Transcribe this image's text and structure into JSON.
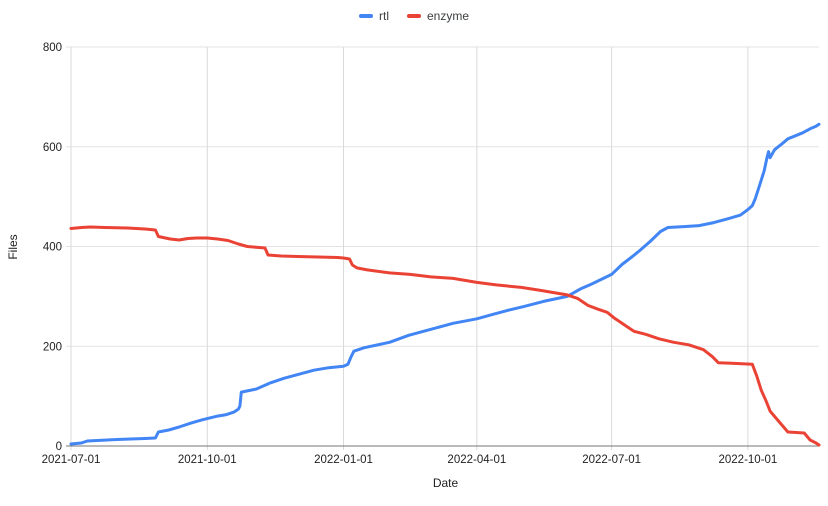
{
  "page": {
    "background": "#ffffff"
  },
  "legend": {
    "items": [
      {
        "label": "rtl",
        "color": "#4285F4"
      },
      {
        "label": "enzyme",
        "color": "#EA4335"
      }
    ]
  },
  "chart_data": {
    "type": "line",
    "title": "",
    "xlabel": "Date",
    "ylabel": "Files",
    "ylim": [
      0,
      800
    ],
    "y_ticks": [
      0,
      200,
      400,
      600,
      800
    ],
    "x_ticks": [
      "2021-07-01",
      "2021-10-01",
      "2022-01-01",
      "2022-04-01",
      "2022-07-01",
      "2022-10-01"
    ],
    "x_start": "2021-07-01",
    "x_end": "2022-11-18",
    "grid": true,
    "legend_position": "top",
    "grid_color": "#e3e3e3",
    "vgrid_color": "#d9d9d9",
    "axis_color": "#757575",
    "text_color": "#1f1f1f",
    "series": [
      {
        "name": "rtl",
        "color": "#4285F4",
        "points": [
          [
            "2021-07-01",
            4
          ],
          [
            "2021-07-08",
            6
          ],
          [
            "2021-07-12",
            10
          ],
          [
            "2021-08-01",
            13
          ],
          [
            "2021-08-20",
            15
          ],
          [
            "2021-08-27",
            16
          ],
          [
            "2021-08-29",
            28
          ],
          [
            "2021-09-05",
            32
          ],
          [
            "2021-09-12",
            38
          ],
          [
            "2021-09-20",
            46
          ],
          [
            "2021-09-27",
            52
          ],
          [
            "2021-10-01",
            55
          ],
          [
            "2021-10-08",
            60
          ],
          [
            "2021-10-14",
            63
          ],
          [
            "2021-10-19",
            68
          ],
          [
            "2021-10-22",
            74
          ],
          [
            "2021-10-23",
            80
          ],
          [
            "2021-10-24",
            108
          ],
          [
            "2021-11-03",
            114
          ],
          [
            "2021-11-12",
            126
          ],
          [
            "2021-11-22",
            136
          ],
          [
            "2021-12-02",
            144
          ],
          [
            "2021-12-12",
            152
          ],
          [
            "2021-12-22",
            157
          ],
          [
            "2022-01-01",
            160
          ],
          [
            "2022-01-04",
            164
          ],
          [
            "2022-01-06",
            178
          ],
          [
            "2022-01-08",
            190
          ],
          [
            "2022-01-15",
            197
          ],
          [
            "2022-02-01",
            208
          ],
          [
            "2022-02-14",
            222
          ],
          [
            "2022-03-01",
            234
          ],
          [
            "2022-03-16",
            246
          ],
          [
            "2022-04-01",
            255
          ],
          [
            "2022-04-12",
            264
          ],
          [
            "2022-04-22",
            272
          ],
          [
            "2022-05-03",
            280
          ],
          [
            "2022-05-16",
            290
          ],
          [
            "2022-06-01",
            300
          ],
          [
            "2022-06-10",
            315
          ],
          [
            "2022-06-17",
            324
          ],
          [
            "2022-06-24",
            334
          ],
          [
            "2022-07-01",
            344
          ],
          [
            "2022-07-08",
            364
          ],
          [
            "2022-07-15",
            380
          ],
          [
            "2022-07-20",
            392
          ],
          [
            "2022-07-27",
            410
          ],
          [
            "2022-08-03",
            430
          ],
          [
            "2022-08-08",
            438
          ],
          [
            "2022-08-20",
            440
          ],
          [
            "2022-08-29",
            442
          ],
          [
            "2022-09-08",
            448
          ],
          [
            "2022-09-18",
            456
          ],
          [
            "2022-09-26",
            463
          ],
          [
            "2022-10-01",
            474
          ],
          [
            "2022-10-04",
            482
          ],
          [
            "2022-10-06",
            496
          ],
          [
            "2022-10-09",
            524
          ],
          [
            "2022-10-12",
            552
          ],
          [
            "2022-10-14",
            580
          ],
          [
            "2022-10-15",
            590
          ],
          [
            "2022-10-16",
            578
          ],
          [
            "2022-10-19",
            594
          ],
          [
            "2022-10-24",
            606
          ],
          [
            "2022-10-28",
            616
          ],
          [
            "2022-11-02",
            622
          ],
          [
            "2022-11-07",
            628
          ],
          [
            "2022-11-12",
            636
          ],
          [
            "2022-11-16",
            641
          ],
          [
            "2022-11-18",
            645
          ]
        ]
      },
      {
        "name": "enzyme",
        "color": "#EA4335",
        "points": [
          [
            "2021-07-01",
            436
          ],
          [
            "2021-07-08",
            438
          ],
          [
            "2021-07-14",
            439
          ],
          [
            "2021-07-24",
            438
          ],
          [
            "2021-08-08",
            437
          ],
          [
            "2021-08-20",
            435
          ],
          [
            "2021-08-27",
            433
          ],
          [
            "2021-08-29",
            420
          ],
          [
            "2021-09-06",
            415
          ],
          [
            "2021-09-12",
            413
          ],
          [
            "2021-09-18",
            416
          ],
          [
            "2021-09-24",
            417
          ],
          [
            "2021-10-01",
            417
          ],
          [
            "2021-10-08",
            415
          ],
          [
            "2021-10-15",
            412
          ],
          [
            "2021-10-22",
            405
          ],
          [
            "2021-10-28",
            400
          ],
          [
            "2021-11-05",
            398
          ],
          [
            "2021-11-09",
            397
          ],
          [
            "2021-11-11",
            383
          ],
          [
            "2021-11-20",
            381
          ],
          [
            "2021-12-01",
            380
          ],
          [
            "2021-12-15",
            379
          ],
          [
            "2021-12-28",
            378
          ],
          [
            "2022-01-01",
            377
          ],
          [
            "2022-01-05",
            375
          ],
          [
            "2022-01-07",
            363
          ],
          [
            "2022-01-10",
            357
          ],
          [
            "2022-01-17",
            353
          ],
          [
            "2022-02-01",
            347
          ],
          [
            "2022-02-15",
            344
          ],
          [
            "2022-03-01",
            339
          ],
          [
            "2022-03-16",
            336
          ],
          [
            "2022-04-01",
            328
          ],
          [
            "2022-04-14",
            323
          ],
          [
            "2022-05-01",
            318
          ],
          [
            "2022-05-14",
            312
          ],
          [
            "2022-05-24",
            307
          ],
          [
            "2022-06-01",
            303
          ],
          [
            "2022-06-08",
            296
          ],
          [
            "2022-06-15",
            282
          ],
          [
            "2022-06-22",
            274
          ],
          [
            "2022-06-28",
            268
          ],
          [
            "2022-07-03",
            256
          ],
          [
            "2022-07-08",
            246
          ],
          [
            "2022-07-12",
            238
          ],
          [
            "2022-07-16",
            230
          ],
          [
            "2022-07-24",
            224
          ],
          [
            "2022-08-02",
            215
          ],
          [
            "2022-08-12",
            208
          ],
          [
            "2022-08-22",
            203
          ],
          [
            "2022-09-01",
            193
          ],
          [
            "2022-09-07",
            179
          ],
          [
            "2022-09-11",
            167
          ],
          [
            "2022-09-20",
            166
          ],
          [
            "2022-10-04",
            164
          ],
          [
            "2022-10-07",
            140
          ],
          [
            "2022-10-10",
            112
          ],
          [
            "2022-10-13",
            92
          ],
          [
            "2022-10-16",
            70
          ],
          [
            "2022-10-20",
            56
          ],
          [
            "2022-10-24",
            42
          ],
          [
            "2022-10-28",
            28
          ],
          [
            "2022-11-08",
            26
          ],
          [
            "2022-11-12",
            12
          ],
          [
            "2022-11-16",
            6
          ],
          [
            "2022-11-18",
            2
          ]
        ]
      }
    ]
  }
}
